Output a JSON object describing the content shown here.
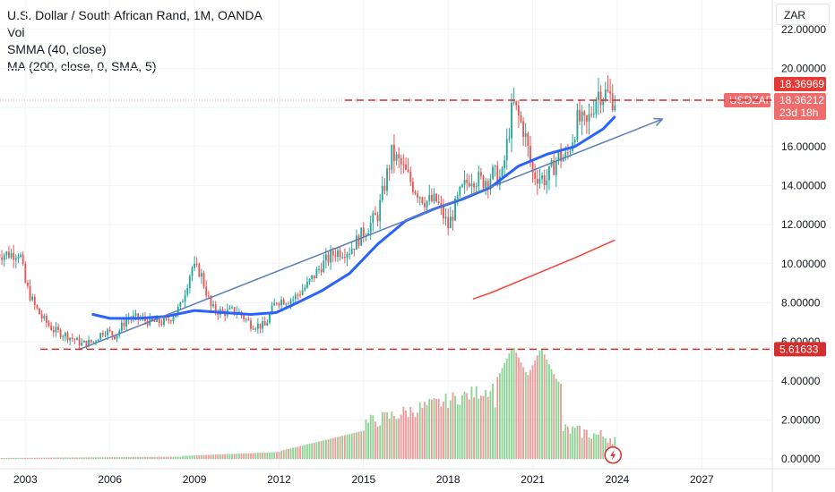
{
  "legend": {
    "title": "U.S. Dollar / South African Rand, 1M, OANDA",
    "vol": "Vol",
    "smma": "SMMA (40, close)",
    "ma": "MA (200, close, 0, SMA, 5)"
  },
  "currency": "ZAR",
  "symbol_tag": "USDZAR",
  "badges": {
    "last_price": "18.36969",
    "current_price": "18.36212",
    "countdown": "23d 18h",
    "support_level": "5.61633"
  },
  "colors": {
    "up": "#26a69a",
    "down": "#ef5350",
    "smma": "#2962ff",
    "ma": "#f44336",
    "trendline": "#5b7db8",
    "vol_up": "#7fcf8a",
    "vol_down": "#f08f8f",
    "dashed": "#d32f2f"
  },
  "chart_data": {
    "type": "candlestick",
    "x_ticks": [
      "2003",
      "2006",
      "2009",
      "2012",
      "2015",
      "2018",
      "2021",
      "2024",
      "2027"
    ],
    "y_ticks": [
      "22.00000",
      "20.00000",
      "18.00000",
      "16.00000",
      "14.00000",
      "12.00000",
      "10.00000",
      "8.00000",
      "6.00000",
      "4.00000",
      "2.00000",
      "0.00000"
    ],
    "ylim": [
      -0.5,
      23.5
    ],
    "xlim": [
      2002.1,
      2029.5
    ],
    "close_series": [
      [
        2002.5,
        10.5
      ],
      [
        2002.8,
        10.6
      ],
      [
        2003.0,
        9.0
      ],
      [
        2003.3,
        7.9
      ],
      [
        2003.6,
        7.2
      ],
      [
        2004.0,
        6.6
      ],
      [
        2004.5,
        6.3
      ],
      [
        2005.0,
        5.9
      ],
      [
        2005.4,
        6.0
      ],
      [
        2005.8,
        6.6
      ],
      [
        2006.2,
        6.3
      ],
      [
        2006.6,
        7.2
      ],
      [
        2007.0,
        7.2
      ],
      [
        2007.5,
        7.0
      ],
      [
        2008.0,
        7.0
      ],
      [
        2008.5,
        7.8
      ],
      [
        2008.9,
        9.8
      ],
      [
        2009.2,
        9.6
      ],
      [
        2009.6,
        7.7
      ],
      [
        2010.0,
        7.5
      ],
      [
        2010.5,
        7.6
      ],
      [
        2011.0,
        6.9
      ],
      [
        2011.5,
        6.8
      ],
      [
        2011.9,
        8.1
      ],
      [
        2012.5,
        8.2
      ],
      [
        2013.0,
        8.9
      ],
      [
        2013.5,
        9.9
      ],
      [
        2014.0,
        10.6
      ],
      [
        2014.5,
        10.7
      ],
      [
        2015.0,
        11.6
      ],
      [
        2015.5,
        12.5
      ],
      [
        2016.0,
        15.6
      ],
      [
        2016.3,
        15.1
      ],
      [
        2016.8,
        13.9
      ],
      [
        2017.2,
        13.2
      ],
      [
        2017.6,
        13.2
      ],
      [
        2018.0,
        11.9
      ],
      [
        2018.4,
        13.5
      ],
      [
        2018.8,
        14.5
      ],
      [
        2019.2,
        14.2
      ],
      [
        2019.6,
        14.6
      ],
      [
        2019.9,
        14.3
      ],
      [
        2020.3,
        18.2
      ],
      [
        2020.7,
        16.8
      ],
      [
        2021.0,
        14.6
      ],
      [
        2021.5,
        14.3
      ],
      [
        2021.9,
        15.5
      ],
      [
        2022.2,
        15.4
      ],
      [
        2022.6,
        17.4
      ],
      [
        2022.9,
        17.0
      ],
      [
        2023.3,
        18.8
      ],
      [
        2023.6,
        18.7
      ],
      [
        2023.9,
        18.4
      ]
    ],
    "smma_series": [
      [
        2005.4,
        7.4
      ],
      [
        2006.0,
        7.2
      ],
      [
        2007.0,
        7.2
      ],
      [
        2008.0,
        7.3
      ],
      [
        2009.0,
        7.6
      ],
      [
        2010.0,
        7.5
      ],
      [
        2011.0,
        7.4
      ],
      [
        2011.9,
        7.5
      ],
      [
        2012.5,
        7.9
      ],
      [
        2013.5,
        8.6
      ],
      [
        2014.5,
        9.5
      ],
      [
        2015.5,
        11.0
      ],
      [
        2016.5,
        12.2
      ],
      [
        2017.5,
        12.8
      ],
      [
        2018.5,
        13.3
      ],
      [
        2019.5,
        13.9
      ],
      [
        2020.5,
        15.0
      ],
      [
        2021.5,
        15.6
      ],
      [
        2022.5,
        16.0
      ],
      [
        2023.5,
        16.9
      ],
      [
        2023.9,
        17.5
      ]
    ],
    "ma_series": [
      [
        2018.9,
        8.2
      ],
      [
        2019.5,
        8.5
      ],
      [
        2020.5,
        9.1
      ],
      [
        2021.5,
        9.7
      ],
      [
        2022.5,
        10.3
      ],
      [
        2023.9,
        11.2
      ]
    ],
    "trendline": [
      [
        2004.9,
        5.6
      ],
      [
        2025.6,
        17.4
      ]
    ],
    "resistance_level": 18.37,
    "support_level": 5.62,
    "volume_peaks": [
      [
        2020.3,
        5.8
      ],
      [
        2021.3,
        5.7
      ]
    ]
  }
}
